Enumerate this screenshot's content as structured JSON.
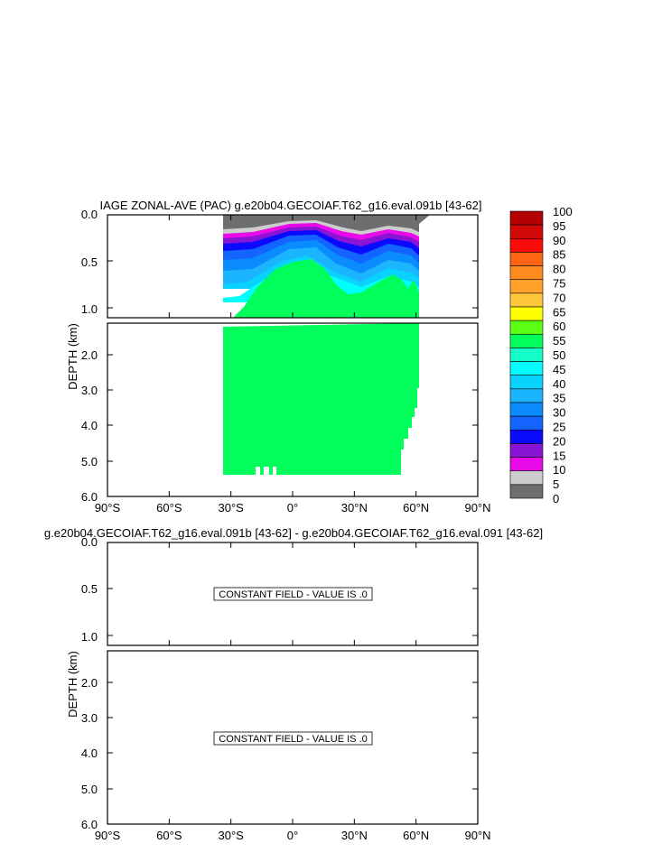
{
  "chart_data": [
    {
      "type": "heatmap",
      "title": "IAGE ZONAL-AVE (PAC) g.e20b04.GECOIAF.T62_g16.eval.091b [43-62]",
      "ylabel": "DEPTH (km)",
      "xlabel": "",
      "xlim": [
        -90,
        90
      ],
      "x_ticks": [
        "90°S",
        "60°S",
        "30°S",
        "0°",
        "30°N",
        "60°N",
        "90°N"
      ],
      "upper_ylim": [
        0,
        1.2
      ],
      "upper_y_ticks": [
        "0.0",
        "0.5",
        "1.0"
      ],
      "lower_ylim": [
        1.2,
        6.0
      ],
      "lower_y_ticks": [
        "2.0",
        "3.0",
        "4.0",
        "5.0",
        "6.0"
      ],
      "colorbar": {
        "labels": [
          "0",
          "5",
          "10",
          "15",
          "20",
          "25",
          "30",
          "35",
          "40",
          "45",
          "50",
          "55",
          "60",
          "65",
          "70",
          "75",
          "80",
          "85",
          "90",
          "95",
          "100"
        ],
        "colors": [
          "#6e6e6e",
          "#cdcdcd",
          "#e80ae8",
          "#8a14d6",
          "#0a0aff",
          "#1464ff",
          "#0a8cff",
          "#1ab4ff",
          "#0ad2ff",
          "#00ffff",
          "#14ffc8",
          "#00ff5a",
          "#5aff14",
          "#ffff00",
          "#ffc83c",
          "#ffa028",
          "#ff8c1e",
          "#ff6414",
          "#ff0a0a",
          "#d20a0a",
          "#b40000"
        ]
      }
    },
    {
      "type": "heatmap",
      "title": "g.e20b04.GECOIAF.T62_g16.eval.091b [43-62] - g.e20b04.GECOIAF.T62_g16.eval.091 [43-62]",
      "ylabel": "DEPTH (km)",
      "xlim": [
        -90,
        90
      ],
      "x_ticks": [
        "90°S",
        "60°S",
        "30°S",
        "0°",
        "30°N",
        "60°N",
        "90°N"
      ],
      "upper_y_ticks": [
        "0.0",
        "0.5",
        "1.0"
      ],
      "lower_y_ticks": [
        "2.0",
        "3.0",
        "4.0",
        "5.0",
        "6.0"
      ],
      "annotation_upper": "CONSTANT FIELD - VALUE IS .0",
      "annotation_lower": "CONSTANT FIELD - VALUE IS .0"
    }
  ]
}
